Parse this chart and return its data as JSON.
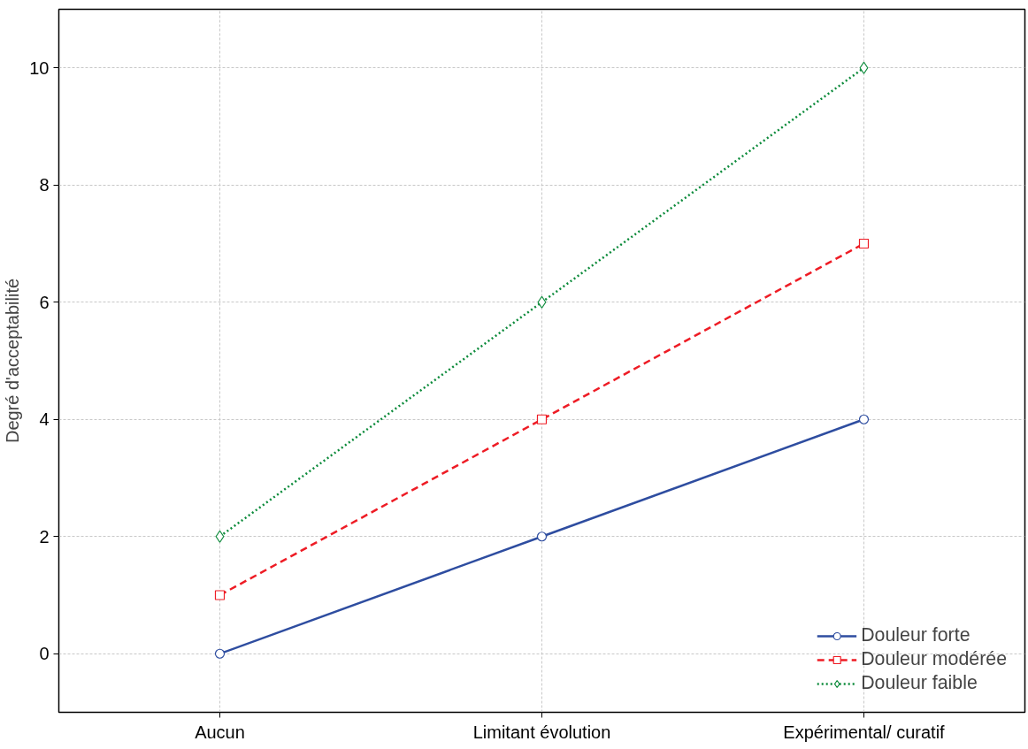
{
  "chart_data": {
    "type": "line",
    "ylabel": "Degré d'acceptabilité",
    "categories": [
      "Aucun",
      "Limitant évolution",
      "Expérimental/ curatif"
    ],
    "series": [
      {
        "name": "Douleur forte",
        "color": "#2e4da0",
        "values": [
          0,
          2,
          4
        ],
        "marker": "circle",
        "line_style": "solid"
      },
      {
        "name": "Douleur modérée",
        "color": "#ee1c25",
        "values": [
          1,
          4,
          7
        ],
        "marker": "square",
        "line_style": "dashed"
      },
      {
        "name": "Douleur faible",
        "color": "#0b8a3a",
        "values": [
          2,
          6,
          10
        ],
        "marker": "diamond",
        "line_style": "dotted"
      }
    ],
    "ylim": [
      -1,
      11
    ],
    "yticks": [
      0,
      2,
      4,
      6,
      8,
      10
    ],
    "grid": true,
    "legend": "bottom right"
  }
}
